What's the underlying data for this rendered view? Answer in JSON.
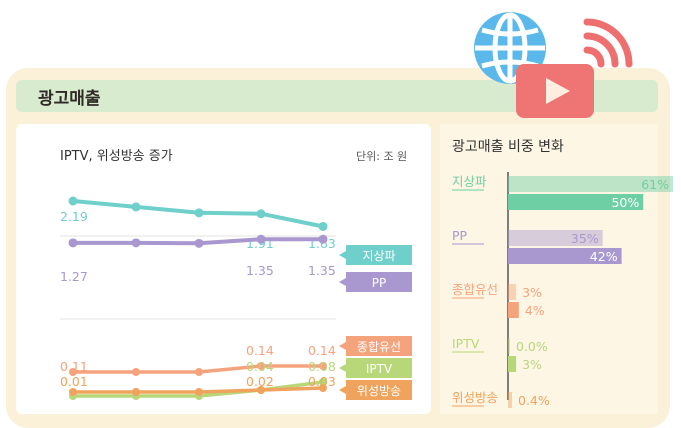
{
  "header": {
    "title": "광고매출"
  },
  "line_chart": {
    "title": "IPTV, 위성방송 증가",
    "unit": "단위: 조 원"
  },
  "share_chart": {
    "title": "광고매출 비중 변화"
  },
  "icons": {
    "globe": "globe-icon",
    "play": "video-play-icon",
    "signal": "broadcast-signal-icon"
  },
  "chart_data": [
    {
      "type": "line",
      "title": "IPTV, 위성방송 증가",
      "unit": "단위: 조 원",
      "series": [
        {
          "name": "지상파",
          "color": "#6fcfca",
          "values": [
            2.19,
            2.06,
            1.93,
            1.91,
            1.63
          ],
          "labels": [
            "2.19",
            null,
            null,
            "1.91",
            "1.63"
          ]
        },
        {
          "name": "PP",
          "color": "#a898cf",
          "values": [
            1.27,
            1.27,
            1.26,
            1.35,
            1.35
          ],
          "labels": [
            "1.27",
            null,
            null,
            "1.35",
            "1.35"
          ]
        },
        {
          "name": "종합유선",
          "color": "#f5a37c",
          "values": [
            0.11,
            0.11,
            0.11,
            0.14,
            0.14
          ],
          "labels": [
            "0.11",
            null,
            null,
            "0.14",
            "0.14"
          ]
        },
        {
          "name": "IPTV",
          "color": "#b8d779",
          "values": [
            0.01,
            0.01,
            0.01,
            0.04,
            0.08
          ],
          "labels": [
            null,
            null,
            null,
            "0.04",
            "0.08"
          ]
        },
        {
          "name": "위성방송",
          "color": "#f0a35c",
          "values": [
            0.01,
            0.01,
            0.01,
            0.02,
            0.03
          ],
          "labels": [
            "0.01",
            null,
            null,
            "0.02",
            "0.03"
          ]
        }
      ]
    },
    {
      "type": "bar",
      "title": "광고매출 비중 변화",
      "orientation": "horizontal",
      "categories": [
        "지상파",
        "PP",
        "종합유선",
        "IPTV",
        "위성방송"
      ],
      "colors": [
        "#6fcfa4",
        "#a898cf",
        "#f5a37c",
        "#b8d779",
        "#f0a35c"
      ],
      "before": [
        61,
        35,
        3,
        0.0,
        0.4
      ],
      "after": [
        50,
        42,
        4,
        3,
        null
      ],
      "before_labels": [
        "61%",
        "35%",
        "3%",
        "0.0%",
        "0.4%"
      ],
      "after_labels": [
        "50%",
        "42%",
        "4%",
        "3%",
        ""
      ]
    }
  ]
}
